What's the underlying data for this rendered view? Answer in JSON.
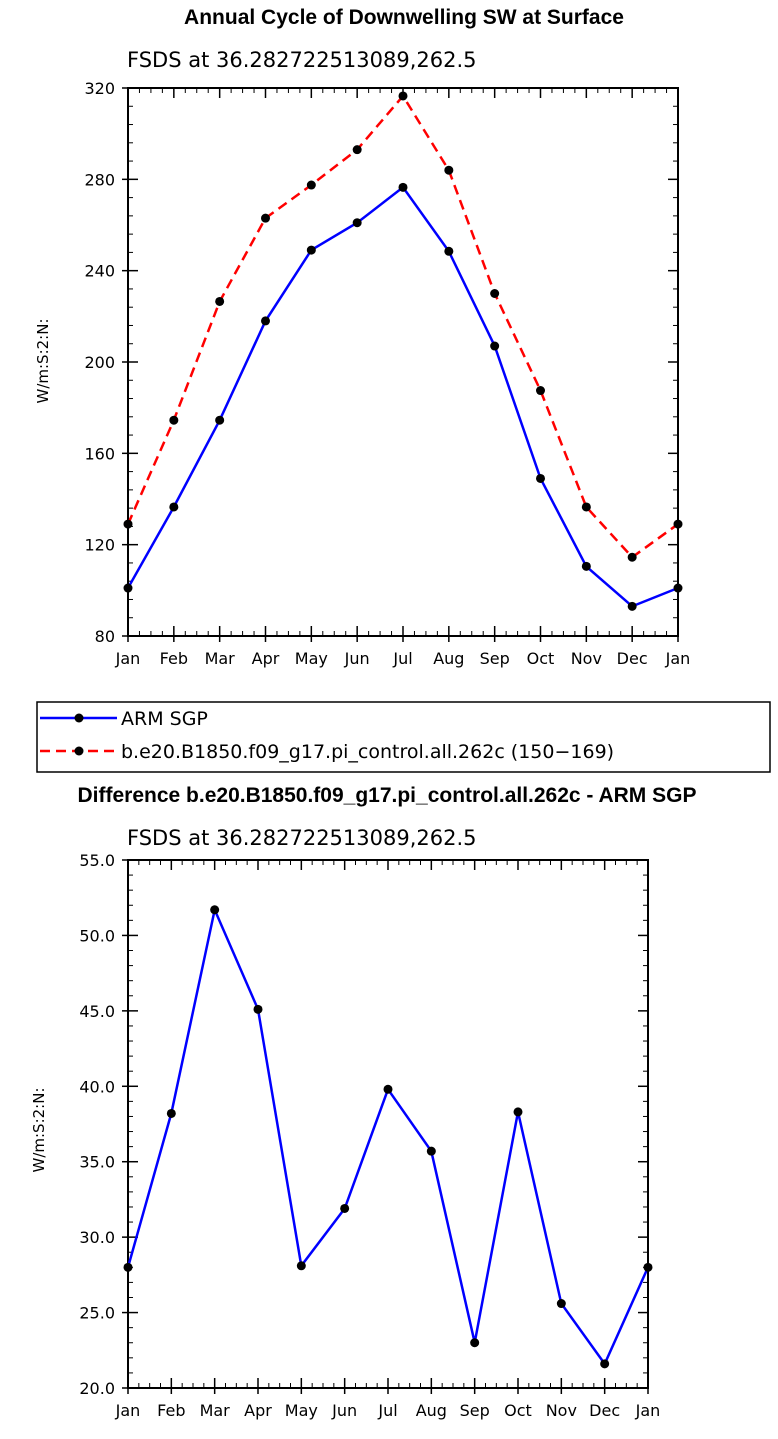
{
  "chart_data": [
    {
      "type": "line",
      "title": "Annual Cycle of Downwelling SW at Surface",
      "subtitle": "FSDS at 36.282722513089,262.5",
      "ylabel": "W/m:S:2:N:",
      "xlabel": "",
      "categories": [
        "Jan",
        "Feb",
        "Mar",
        "Apr",
        "May",
        "Jun",
        "Jul",
        "Aug",
        "Sep",
        "Oct",
        "Nov",
        "Dec",
        "Jan"
      ],
      "ylim": [
        80,
        320
      ],
      "yticks": [
        "80",
        "120",
        "160",
        "200",
        "240",
        "280",
        "320"
      ],
      "series": [
        {
          "name": "ARM SGP",
          "color": "#0000ff",
          "dash": "solid",
          "values": [
            101,
            136.5,
            174.5,
            218,
            249,
            261,
            276.5,
            248.5,
            207,
            149,
            110.5,
            93,
            101
          ]
        },
        {
          "name": "b.e20.B1850.f09_g17.pi_control.all.262c (150−169)",
          "color": "#ff0000",
          "dash": "dashed",
          "values": [
            129,
            174.5,
            226.5,
            263,
            277.5,
            293,
            316.5,
            284,
            230,
            187.5,
            136.5,
            114.5,
            129
          ]
        }
      ],
      "legend": "below"
    },
    {
      "type": "line",
      "title": "Difference b.e20.B1850.f09_g17.pi_control.all.262c - ARM SGP",
      "subtitle": "FSDS at 36.282722513089,262.5",
      "ylabel": "W/m:S:2:N:",
      "xlabel": "",
      "categories": [
        "Jan",
        "Feb",
        "Mar",
        "Apr",
        "May",
        "Jun",
        "Jul",
        "Aug",
        "Sep",
        "Oct",
        "Nov",
        "Dec",
        "Jan"
      ],
      "ylim": [
        20,
        55
      ],
      "yticks": [
        "20.0",
        "25.0",
        "30.0",
        "35.0",
        "40.0",
        "45.0",
        "50.0",
        "55.0"
      ],
      "series": [
        {
          "name": "Difference",
          "color": "#0000ff",
          "dash": "solid",
          "values": [
            28.0,
            38.2,
            51.7,
            45.1,
            28.1,
            31.9,
            39.8,
            35.7,
            23.0,
            38.3,
            25.6,
            21.6,
            28.0
          ]
        }
      ]
    }
  ],
  "legend": {
    "items": [
      {
        "label": "ARM SGP"
      },
      {
        "label": "b.e20.B1850.f09_g17.pi_control.all.262c (150−169)"
      }
    ]
  }
}
